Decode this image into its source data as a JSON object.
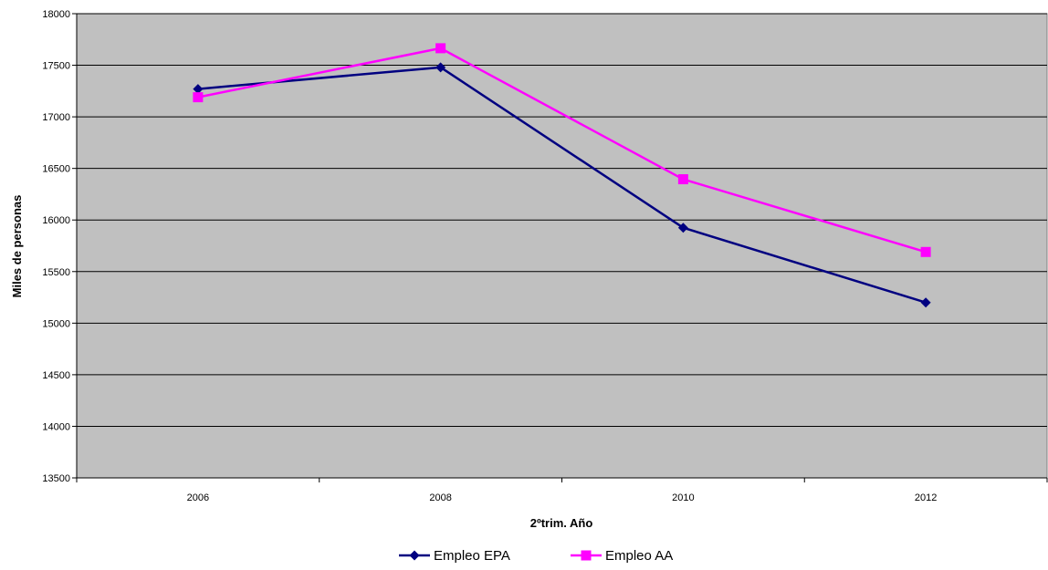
{
  "chart_data": {
    "type": "line",
    "title": "",
    "xlabel": "2ºtrim. Año",
    "ylabel": "Miles de personas",
    "categories": [
      "2006",
      "2008",
      "2010",
      "2012"
    ],
    "ylim": [
      13500,
      18000
    ],
    "yticks": [
      13500,
      14000,
      14500,
      15000,
      15500,
      16000,
      16500,
      17000,
      17500,
      18000
    ],
    "grid": true,
    "legend_position": "bottom",
    "plot_background": "#c0c0c0",
    "series": [
      {
        "name": "Empleo EPA",
        "values": [
          17270,
          17480,
          15925,
          15200
        ],
        "color": "#000080",
        "marker": "diamond"
      },
      {
        "name": "Empleo AA",
        "values": [
          17190,
          17665,
          16395,
          15690
        ],
        "color": "#ff00ff",
        "marker": "square"
      }
    ]
  }
}
